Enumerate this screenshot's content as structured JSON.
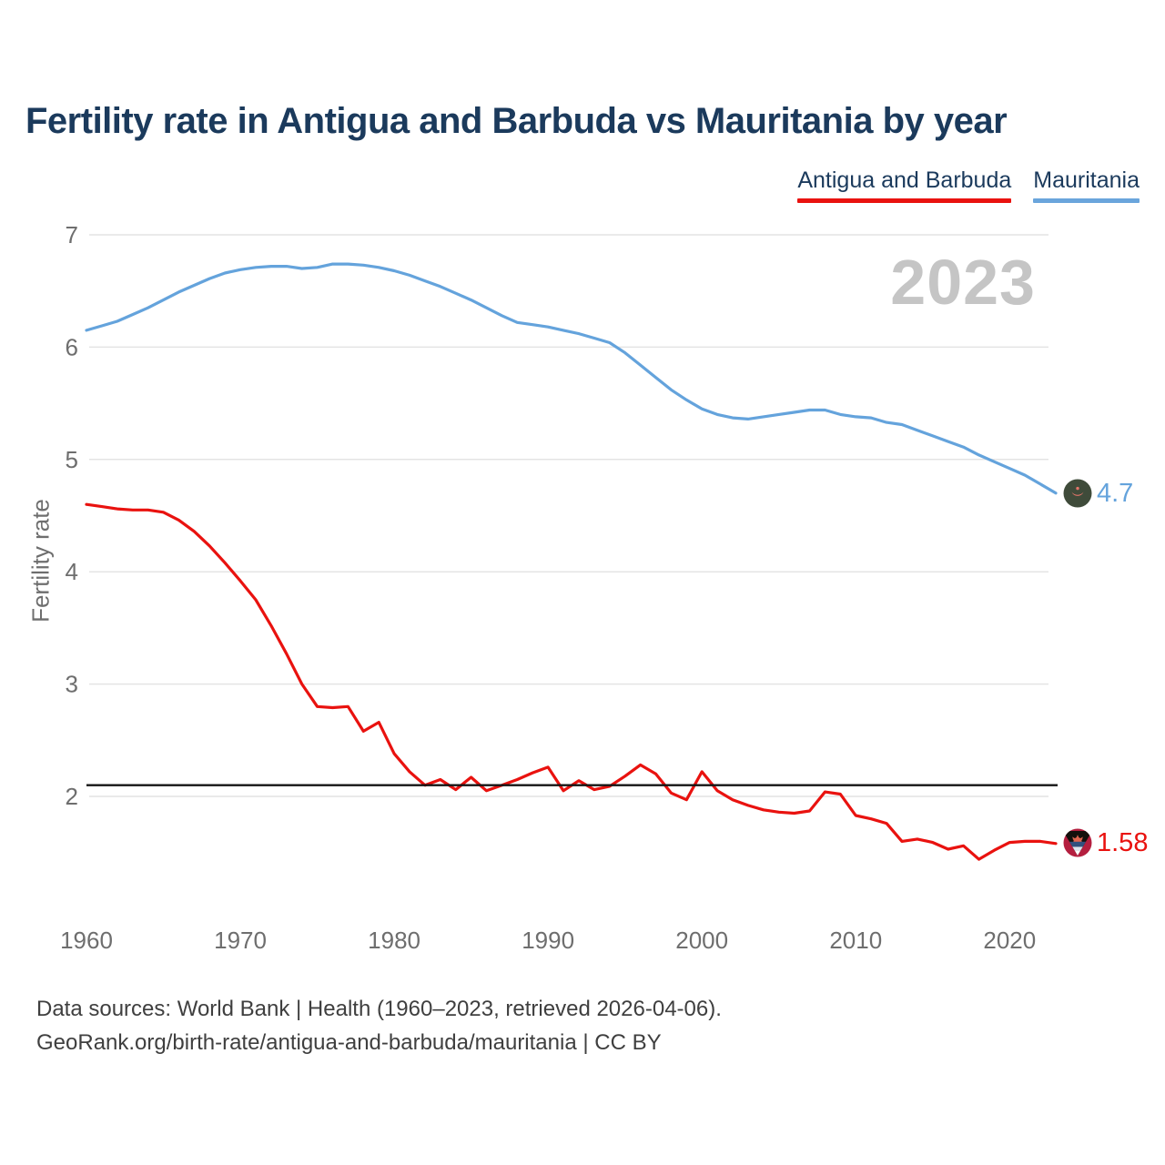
{
  "header": {
    "title": "Fertility rate in Antigua and Barbuda vs Mauritania by year"
  },
  "legend": {
    "items": [
      {
        "label": "Antigua and Barbuda",
        "color": "#e9120f"
      },
      {
        "label": "Mauritania",
        "color": "#6aa5dc"
      }
    ]
  },
  "watermark": {
    "text": "2023"
  },
  "chart_data": {
    "type": "line",
    "title": "Fertility rate in Antigua and Barbuda vs Mauritania by year",
    "xlabel": "",
    "ylabel": "Fertility rate",
    "ylim": [
      1.3,
      7.2
    ],
    "xlim": [
      1960,
      2023
    ],
    "grid": true,
    "legend_position": "top-right",
    "y_ticks": [
      7,
      6,
      5,
      4,
      3,
      2
    ],
    "x_ticks": [
      1960,
      1970,
      1980,
      1990,
      2000,
      2010,
      2020
    ],
    "reference_line": {
      "value": 2.1,
      "color": "#151515"
    },
    "x": [
      1960,
      1961,
      1962,
      1963,
      1964,
      1965,
      1966,
      1967,
      1968,
      1969,
      1970,
      1971,
      1972,
      1973,
      1974,
      1975,
      1976,
      1977,
      1978,
      1979,
      1980,
      1981,
      1982,
      1983,
      1984,
      1985,
      1986,
      1987,
      1988,
      1989,
      1990,
      1991,
      1992,
      1993,
      1994,
      1995,
      1996,
      1997,
      1998,
      1999,
      2000,
      2001,
      2002,
      2003,
      2004,
      2005,
      2006,
      2007,
      2008,
      2009,
      2010,
      2011,
      2012,
      2013,
      2014,
      2015,
      2016,
      2017,
      2018,
      2019,
      2020,
      2021,
      2022,
      2023
    ],
    "series": [
      {
        "name": "Antigua and Barbuda",
        "color": "#e9120f",
        "final_label": "1.58",
        "final_year": 2023,
        "values": [
          4.6,
          4.58,
          4.56,
          4.55,
          4.55,
          4.53,
          4.46,
          4.36,
          4.23,
          4.08,
          3.92,
          3.75,
          3.52,
          3.27,
          3.0,
          2.8,
          2.79,
          2.8,
          2.58,
          2.66,
          2.38,
          2.22,
          2.1,
          2.15,
          2.06,
          2.17,
          2.05,
          2.1,
          2.15,
          2.21,
          2.26,
          2.05,
          2.14,
          2.06,
          2.09,
          2.18,
          2.28,
          2.2,
          2.03,
          1.97,
          2.22,
          2.05,
          1.97,
          1.92,
          1.88,
          1.86,
          1.85,
          1.87,
          2.04,
          2.02,
          1.83,
          1.8,
          1.76,
          1.6,
          1.62,
          1.59,
          1.53,
          1.56,
          1.44,
          1.52,
          1.59,
          1.6,
          1.6,
          1.58
        ]
      },
      {
        "name": "Mauritania",
        "color": "#64a3dc",
        "final_label": "4.7",
        "final_year": 2023,
        "values": [
          6.15,
          6.19,
          6.23,
          6.29,
          6.35,
          6.42,
          6.49,
          6.55,
          6.61,
          6.66,
          6.69,
          6.71,
          6.72,
          6.72,
          6.7,
          6.71,
          6.74,
          6.74,
          6.73,
          6.71,
          6.68,
          6.64,
          6.59,
          6.54,
          6.48,
          6.42,
          6.35,
          6.28,
          6.22,
          6.2,
          6.18,
          6.15,
          6.12,
          6.08,
          6.04,
          5.95,
          5.84,
          5.73,
          5.62,
          5.53,
          5.45,
          5.4,
          5.37,
          5.36,
          5.38,
          5.4,
          5.42,
          5.44,
          5.44,
          5.4,
          5.38,
          5.37,
          5.33,
          5.31,
          5.26,
          5.21,
          5.16,
          5.11,
          5.04,
          4.98,
          4.92,
          4.86,
          4.78,
          4.7
        ]
      }
    ]
  },
  "footer": {
    "line1": "Data sources: World Bank | Health (1960–2023, retrieved 2026-04-06).",
    "line2": "GeoRank.org/birth-rate/antigua-and-barbuda/mauritania | CC BY"
  }
}
